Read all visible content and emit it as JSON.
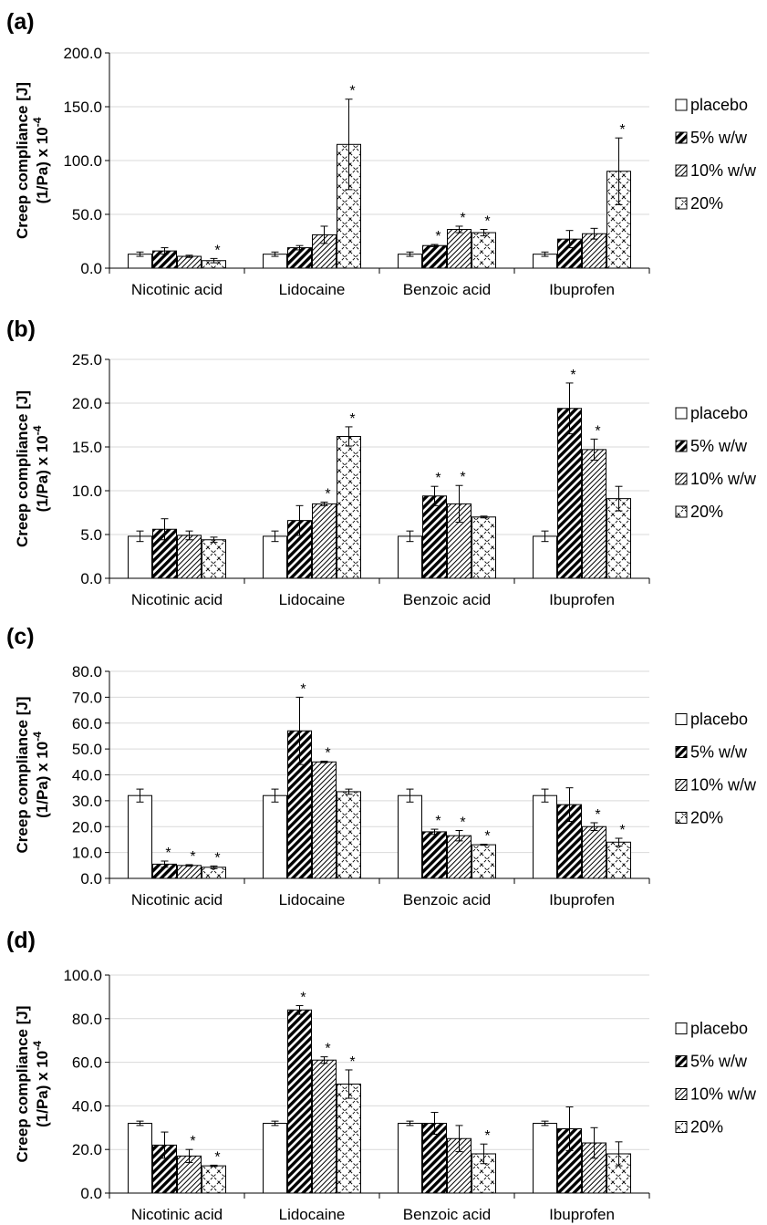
{
  "chart_data": [
    {
      "panel_label": "(a)",
      "type": "bar",
      "ylabel_line1": "Creep compliance [J]",
      "ylabel_line2": "(1/Pa) x 10",
      "ylabel_exponent": "-4",
      "ylim": [
        0,
        200
      ],
      "yticks": [
        "0.0",
        "50.0",
        "100.0",
        "150.0",
        "200.0"
      ],
      "grid": true,
      "legend_position": "right",
      "categories": [
        "Nicotinic acid",
        "Lidocaine",
        "Benzoic acid",
        "Ibuprofen"
      ],
      "series": [
        {
          "name": "placebo",
          "pattern": "none",
          "values": [
            13,
            13,
            13,
            13
          ],
          "errors": [
            2,
            2,
            2,
            2
          ],
          "sig": [
            false,
            false,
            false,
            false
          ]
        },
        {
          "name": "5% w/w",
          "pattern": "dense",
          "values": [
            16,
            19,
            21,
            27
          ],
          "errors": [
            3,
            2,
            1,
            8
          ],
          "sig": [
            false,
            false,
            true,
            false
          ]
        },
        {
          "name": "10% w/w",
          "pattern": "light",
          "values": [
            11,
            31,
            36,
            32
          ],
          "errors": [
            1,
            8,
            3,
            5
          ],
          "sig": [
            false,
            false,
            true,
            false
          ]
        },
        {
          "name": "20%",
          "pattern": "cross",
          "values": [
            7,
            115,
            33,
            90
          ],
          "errors": [
            2,
            42,
            3,
            31
          ],
          "sig": [
            true,
            true,
            true,
            true
          ]
        }
      ]
    },
    {
      "panel_label": "(b)",
      "type": "bar",
      "ylabel_line1": "Creep compliance [J]",
      "ylabel_line2": "(1/Pa) x 10",
      "ylabel_exponent": "-4",
      "ylim": [
        0,
        25
      ],
      "yticks": [
        "0.0",
        "5.0",
        "10.0",
        "15.0",
        "20.0",
        "25.0"
      ],
      "grid": true,
      "legend_position": "right",
      "categories": [
        "Nicotinic acid",
        "Lidocaine",
        "Benzoic acid",
        "Ibuprofen"
      ],
      "series": [
        {
          "name": "placebo",
          "pattern": "none",
          "values": [
            4.8,
            4.8,
            4.8,
            4.8
          ],
          "errors": [
            0.6,
            0.6,
            0.6,
            0.6
          ],
          "sig": [
            false,
            false,
            false,
            false
          ]
        },
        {
          "name": "5% w/w",
          "pattern": "dense",
          "values": [
            5.6,
            6.6,
            9.4,
            19.4
          ],
          "errors": [
            1.2,
            1.7,
            1.1,
            2.9
          ],
          "sig": [
            false,
            false,
            true,
            true
          ]
        },
        {
          "name": "10% w/w",
          "pattern": "light",
          "values": [
            4.9,
            8.5,
            8.5,
            14.7
          ],
          "errors": [
            0.5,
            0.2,
            2.1,
            1.2
          ],
          "sig": [
            false,
            true,
            true,
            true
          ]
        },
        {
          "name": "20%",
          "pattern": "cross",
          "values": [
            4.4,
            16.2,
            7.0,
            9.1
          ],
          "errors": [
            0.3,
            1.1,
            0.1,
            1.4
          ],
          "sig": [
            false,
            true,
            false,
            false
          ]
        }
      ]
    },
    {
      "panel_label": "(c)",
      "type": "bar",
      "ylabel_line1": "Creep compliance [J]",
      "ylabel_line2": "(1/Pa) x 10",
      "ylabel_exponent": "-4",
      "ylim": [
        0,
        80
      ],
      "yticks": [
        "0.0",
        "10.0",
        "20.0",
        "30.0",
        "40.0",
        "50.0",
        "60.0",
        "70.0",
        "80.0"
      ],
      "grid": true,
      "legend_position": "right",
      "categories": [
        "Nicotinic acid",
        "Lidocaine",
        "Benzoic acid",
        "Ibuprofen"
      ],
      "series": [
        {
          "name": "placebo",
          "pattern": "none",
          "values": [
            32,
            32,
            32,
            32
          ],
          "errors": [
            2.5,
            2.5,
            2.5,
            2.5
          ],
          "sig": [
            false,
            false,
            false,
            false
          ]
        },
        {
          "name": "5% w/w",
          "pattern": "dense",
          "values": [
            5.5,
            57,
            18,
            28.5
          ],
          "errors": [
            1.2,
            13,
            1,
            6.5
          ],
          "sig": [
            true,
            true,
            true,
            false
          ]
        },
        {
          "name": "10% w/w",
          "pattern": "light",
          "values": [
            5,
            45,
            16.5,
            20
          ],
          "errors": [
            0.3,
            0.3,
            2,
            1.5
          ],
          "sig": [
            true,
            true,
            true,
            true
          ]
        },
        {
          "name": "20%",
          "pattern": "cross",
          "values": [
            4.3,
            33.5,
            13,
            14
          ],
          "errors": [
            0.5,
            1,
            0.2,
            1.5
          ],
          "sig": [
            true,
            false,
            true,
            true
          ]
        }
      ]
    },
    {
      "panel_label": "(d)",
      "type": "bar",
      "ylabel_line1": "Creep compliance [J]",
      "ylabel_line2": "(1/Pa) x 10",
      "ylabel_exponent": "-4",
      "ylim": [
        0,
        100
      ],
      "yticks": [
        "0.0",
        "20.0",
        "40.0",
        "60.0",
        "80.0",
        "100.0"
      ],
      "grid": true,
      "legend_position": "right",
      "categories": [
        "Nicotinic acid",
        "Lidocaine",
        "Benzoic acid",
        "Ibuprofen"
      ],
      "series": [
        {
          "name": "placebo",
          "pattern": "none",
          "values": [
            32,
            32,
            32,
            32
          ],
          "errors": [
            1,
            1,
            1,
            1
          ],
          "sig": [
            false,
            false,
            false,
            false
          ]
        },
        {
          "name": "5% w/w",
          "pattern": "dense",
          "values": [
            22,
            84,
            32,
            29.5
          ],
          "errors": [
            6,
            2,
            5,
            10
          ],
          "sig": [
            false,
            true,
            false,
            false
          ]
        },
        {
          "name": "10% w/w",
          "pattern": "light",
          "values": [
            17,
            61,
            25,
            23
          ],
          "errors": [
            3,
            1.5,
            6,
            7
          ],
          "sig": [
            true,
            true,
            false,
            false
          ]
        },
        {
          "name": "20%",
          "pattern": "cross",
          "values": [
            12.5,
            50,
            18,
            18
          ],
          "errors": [
            0.3,
            6.5,
            4.5,
            5.5
          ],
          "sig": [
            true,
            true,
            true,
            false
          ]
        }
      ]
    }
  ],
  "significance_marker": "*",
  "colors": {
    "bar_stroke": "#000000",
    "grid": "#d9d9d9",
    "axis": "#000000",
    "fill": "#ffffff"
  }
}
